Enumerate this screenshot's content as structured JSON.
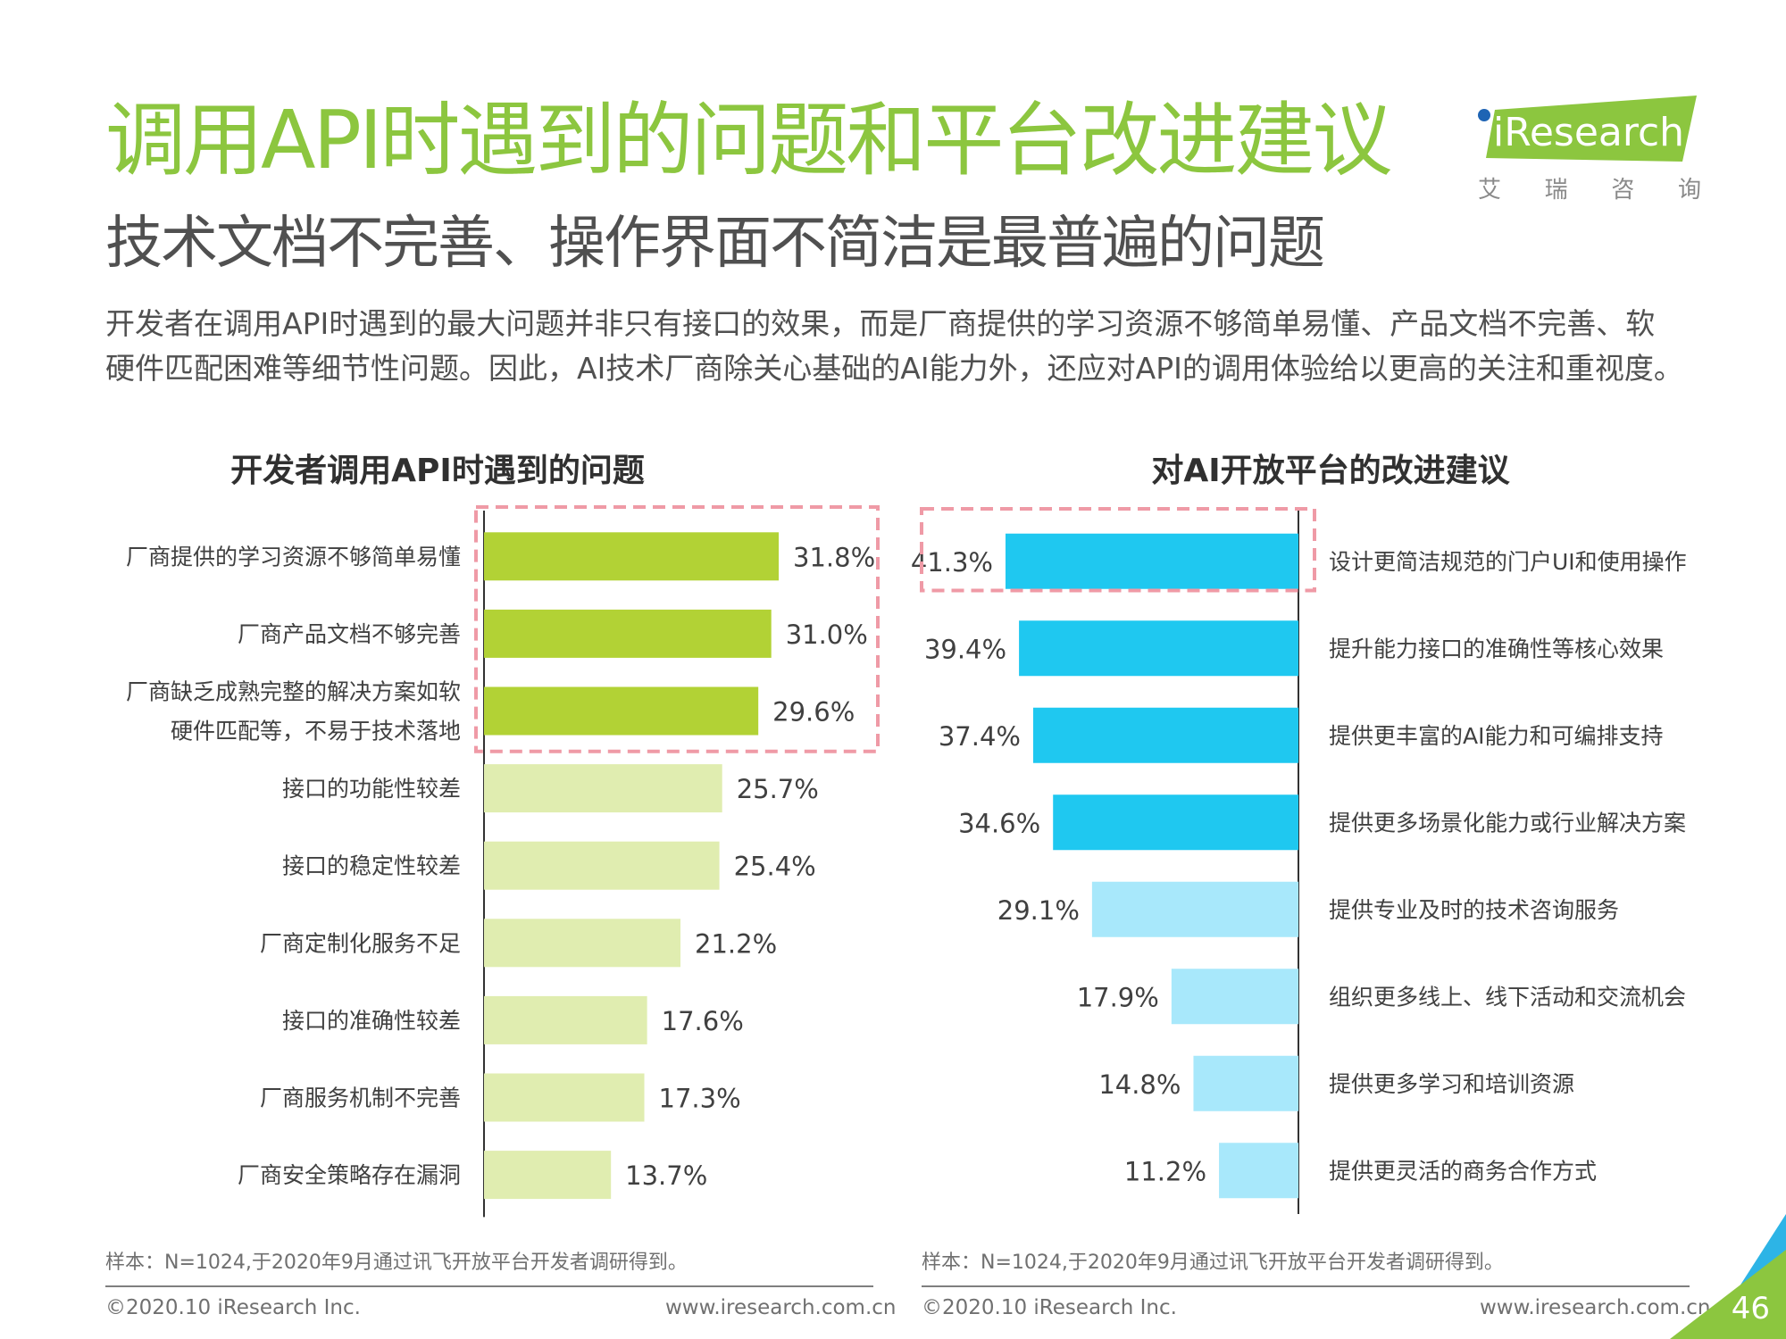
{
  "header": {
    "title": "调用API时遇到的问题和平台改进建议",
    "subtitle": "技术文档不完善、操作界面不简洁是最普遍的问题",
    "description_lines": [
      "开发者在调用API时遇到的最大问题并非只有接口的效果，而是厂商提供的学习资源不够简单易懂、产品文档不完善、软",
      "硬件匹配困难等细节性问题。因此，AI技术厂商除关心基础的AI能力外，还应对API的调用体验给以更高的关注和重视度。"
    ]
  },
  "logo": {
    "text": "iResearch",
    "sub": [
      "艾",
      "瑞",
      "咨",
      "询"
    ],
    "accent_color": "#8cc63f"
  },
  "chart_data": [
    {
      "type": "bar",
      "orientation": "horizontal",
      "title": "开发者调用API时遇到的问题",
      "categories": [
        "厂商提供的学习资源不够简单易懂",
        "厂商产品文档不够完善",
        "厂商缺乏成熟完整的解决方案如软\n硬件匹配等，不易于技术落地",
        "接口的功能性较差",
        "接口的稳定性较差",
        "厂商定制化服务不足",
        "接口的准确性较差",
        "厂商服务机制不完善",
        "厂商安全策略存在漏洞"
      ],
      "values": [
        31.8,
        31.0,
        29.6,
        25.7,
        25.4,
        21.2,
        17.6,
        17.3,
        13.7
      ],
      "value_labels": [
        "31.8%",
        "31.0%",
        "29.6%",
        "25.7%",
        "25.4%",
        "21.2%",
        "17.6%",
        "17.3%",
        "13.7%"
      ],
      "highlight_count": 3,
      "colors": {
        "highlight": "#b2d235",
        "normal": "#e0edb0"
      },
      "highlight_box_color": "#ef9aa6",
      "xlim": [
        0,
        40
      ]
    },
    {
      "type": "bar",
      "orientation": "horizontal",
      "direction": "right-to-left",
      "title": "对AI开放平台的改进建议",
      "categories": [
        "设计更简洁规范的门户UI和使用操作",
        "提升能力接口的准确性等核心效果",
        "提供更丰富的AI能力和可编排支持",
        "提供更多场景化能力或行业解决方案",
        "提供专业及时的技术咨询服务",
        "组织更多线上、线下活动和交流机会",
        "提供更多学习和培训资源",
        "提供更灵活的商务合作方式"
      ],
      "values": [
        41.3,
        39.4,
        37.4,
        34.6,
        29.1,
        17.9,
        14.8,
        11.2
      ],
      "value_labels": [
        "41.3%",
        "39.4%",
        "37.4%",
        "34.6%",
        "29.1%",
        "17.9%",
        "14.8%",
        "11.2%"
      ],
      "highlight_count": 4,
      "boxed_count": 1,
      "colors": {
        "highlight": "#1fc8f0",
        "normal": "#a8e8fb"
      },
      "highlight_box_color": "#ef9aa6",
      "xlim": [
        0,
        50
      ]
    }
  ],
  "footer": {
    "left_note": "样本：N=1024,于2020年9月通过讯飞开放平台开发者调研得到。",
    "right_note": "样本：N=1024,于2020年9月通过讯飞开放平台开发者调研得到。",
    "copyright": "©2020.10 iResearch Inc.",
    "website": "www.iresearch.com.cn",
    "page_number": "46"
  }
}
